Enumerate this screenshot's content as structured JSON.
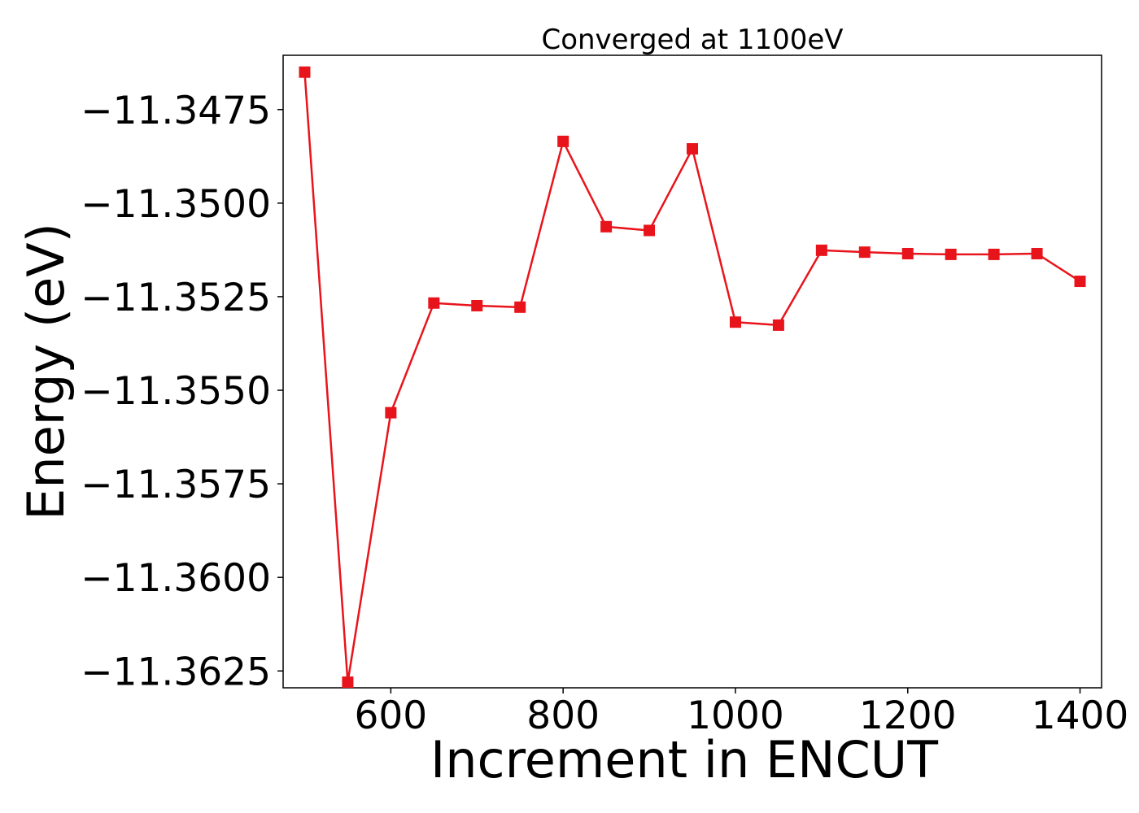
{
  "chart_data": {
    "type": "line",
    "title": "Converged at 1100eV",
    "xlabel": "Increment in ENCUT",
    "ylabel": "Energy (eV)",
    "xlim": [
      475,
      1425
    ],
    "ylim": [
      -11.36295,
      -11.34605
    ],
    "x_ticks": [
      600,
      800,
      1000,
      1200,
      1400
    ],
    "x_tick_labels": [
      "600",
      "800",
      "1000",
      "1200",
      "1400"
    ],
    "y_ticks": [
      -11.3475,
      -11.35,
      -11.3525,
      -11.355,
      -11.3575,
      -11.36,
      -11.3625
    ],
    "y_tick_labels": [
      "−11.3475",
      "−11.3500",
      "−11.3525",
      "−11.3550",
      "−11.3575",
      "−11.3600",
      "−11.3625"
    ],
    "grid": false,
    "series": [
      {
        "color": "#e8141b",
        "marker": "square",
        "x": [
          500,
          550,
          600,
          650,
          700,
          750,
          800,
          850,
          900,
          950,
          1000,
          1050,
          1100,
          1150,
          1200,
          1250,
          1300,
          1350,
          1400
        ],
        "y": [
          -11.3465,
          -11.3628,
          -11.3556,
          -11.35267,
          -11.35274,
          -11.35278,
          -11.34835,
          -11.35063,
          -11.35073,
          -11.34855,
          -11.35318,
          -11.35326,
          -11.35126,
          -11.35131,
          -11.35135,
          -11.35137,
          -11.35137,
          -11.35135,
          -11.35209
        ]
      }
    ]
  }
}
